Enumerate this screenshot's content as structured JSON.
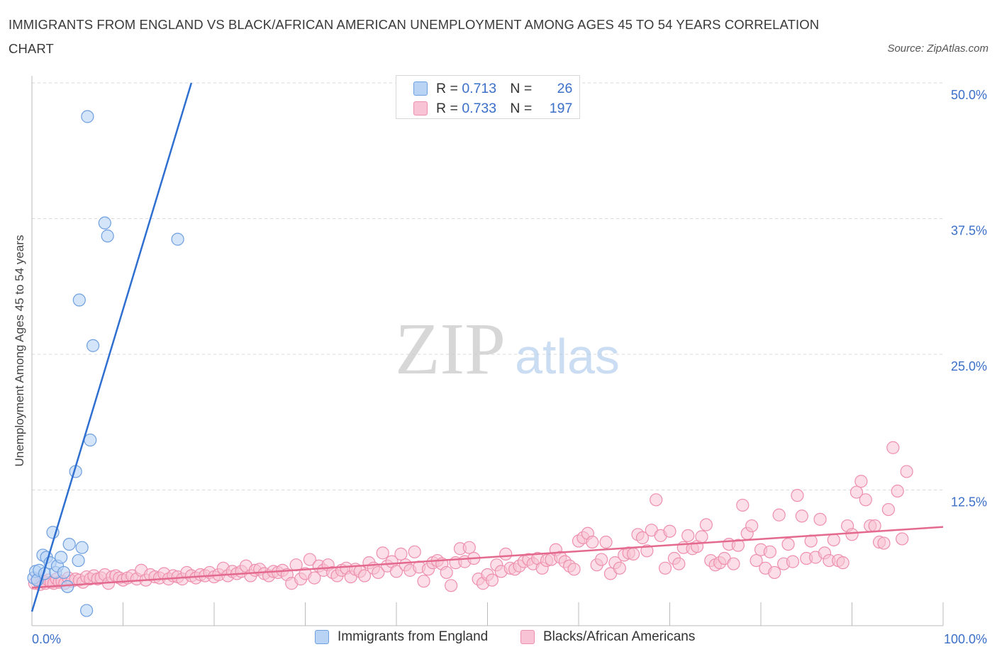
{
  "title": "IMMIGRANTS FROM ENGLAND VS BLACK/AFRICAN AMERICAN UNEMPLOYMENT AMONG AGES 45 TO 54 YEARS CORRELATION CHART",
  "source": "Source: ZipAtlas.com",
  "watermark": {
    "zip": "ZIP",
    "atlas": "atlas"
  },
  "colors": {
    "blue_fill": "#b9d3f5",
    "blue_stroke": "#6e9fe0",
    "blue_line": "#2e6fd0",
    "pink_fill": "#f8c3d4",
    "pink_stroke": "#ee8fae",
    "pink_line": "#e4698f",
    "grid": "#d9d9d9",
    "axis_label": "#3b6fc8"
  },
  "legend_top": [
    {
      "r_label": "R = ",
      "r_value": "0.713",
      "n_label": "N = ",
      "n_value": "26"
    },
    {
      "r_label": "R = ",
      "r_value": "0.733",
      "n_label": "N = ",
      "n_value": "197"
    }
  ],
  "legend_bottom": [
    "Immigrants from England",
    "Blacks/African Americans"
  ],
  "chart_data": {
    "type": "scatter",
    "title": "IMMIGRANTS FROM ENGLAND VS BLACK/AFRICAN AMERICAN UNEMPLOYMENT AMONG AGES 45 TO 54 YEARS CORRELATION CHART",
    "xlabel": "",
    "ylabel": "Unemployment Among Ages 45 to 54 years",
    "xlim": [
      0,
      100
    ],
    "ylim": [
      0,
      50
    ],
    "x_tick_labels": [
      "0.0%",
      "100.0%"
    ],
    "y_tick_labels": [
      "12.5%",
      "25.0%",
      "37.5%",
      "50.0%"
    ],
    "y_ticks": [
      12.5,
      25,
      37.5,
      50
    ],
    "grid": true,
    "legend_position": "top-center",
    "series": [
      {
        "name": "Immigrants from England",
        "color": "#6e9fe0",
        "points": [
          [
            0.2,
            4.4
          ],
          [
            0.4,
            5.0
          ],
          [
            0.6,
            4.2
          ],
          [
            0.8,
            5.1
          ],
          [
            1.2,
            6.5
          ],
          [
            1.4,
            4.8
          ],
          [
            1.6,
            6.3
          ],
          [
            2.0,
            5.8
          ],
          [
            2.3,
            8.6
          ],
          [
            2.6,
            4.9
          ],
          [
            2.8,
            5.5
          ],
          [
            3.2,
            6.3
          ],
          [
            3.5,
            4.9
          ],
          [
            3.9,
            3.6
          ],
          [
            4.1,
            7.5
          ],
          [
            4.8,
            14.2
          ],
          [
            5.1,
            6.0
          ],
          [
            5.2,
            30.0
          ],
          [
            5.5,
            7.2
          ],
          [
            6.0,
            1.4
          ],
          [
            6.1,
            46.9
          ],
          [
            6.4,
            17.1
          ],
          [
            6.7,
            25.8
          ],
          [
            8.0,
            37.1
          ],
          [
            8.3,
            35.9
          ],
          [
            16.0,
            35.6
          ]
        ]
      },
      {
        "name": "Blacks/African Americans",
        "color": "#ee8fae",
        "points": [
          [
            0.3,
            3.9
          ],
          [
            0.6,
            4.3
          ],
          [
            0.9,
            3.8
          ],
          [
            1.2,
            4.1
          ],
          [
            1.5,
            3.9
          ],
          [
            1.8,
            4.2
          ],
          [
            2.1,
            4.0
          ],
          [
            2.4,
            3.9
          ],
          [
            2.7,
            4.3
          ],
          [
            3.0,
            4.0
          ],
          [
            3.3,
            4.1
          ],
          [
            3.6,
            3.9
          ],
          [
            4.0,
            4.4
          ],
          [
            4.4,
            4.1
          ],
          [
            4.8,
            4.3
          ],
          [
            5.2,
            4.2
          ],
          [
            5.6,
            4.0
          ],
          [
            6.0,
            4.5
          ],
          [
            6.4,
            4.3
          ],
          [
            6.8,
            4.6
          ],
          [
            7.2,
            4.3
          ],
          [
            7.6,
            4.4
          ],
          [
            8.0,
            4.7
          ],
          [
            8.4,
            3.9
          ],
          [
            8.8,
            4.5
          ],
          [
            9.2,
            4.6
          ],
          [
            9.6,
            4.4
          ],
          [
            10.0,
            4.2
          ],
          [
            10.5,
            4.4
          ],
          [
            11.0,
            4.6
          ],
          [
            11.5,
            4.3
          ],
          [
            12.0,
            5.1
          ],
          [
            12.5,
            4.2
          ],
          [
            13.0,
            4.7
          ],
          [
            13.5,
            4.5
          ],
          [
            14.0,
            4.4
          ],
          [
            14.5,
            4.8
          ],
          [
            15.0,
            4.3
          ],
          [
            15.5,
            4.6
          ],
          [
            16.0,
            4.5
          ],
          [
            16.5,
            4.3
          ],
          [
            17.0,
            4.9
          ],
          [
            17.5,
            4.6
          ],
          [
            18.0,
            4.4
          ],
          [
            18.5,
            4.7
          ],
          [
            19.0,
            4.6
          ],
          [
            19.5,
            4.9
          ],
          [
            20.0,
            4.5
          ],
          [
            20.5,
            4.7
          ],
          [
            21.0,
            5.3
          ],
          [
            21.5,
            4.6
          ],
          [
            22.0,
            5.0
          ],
          [
            22.5,
            4.8
          ],
          [
            23.0,
            5.0
          ],
          [
            23.5,
            5.5
          ],
          [
            24.0,
            4.6
          ],
          [
            24.5,
            5.1
          ],
          [
            25.0,
            5.2
          ],
          [
            25.5,
            4.8
          ],
          [
            26.0,
            4.6
          ],
          [
            26.5,
            5.0
          ],
          [
            27.0,
            4.9
          ],
          [
            27.5,
            5.1
          ],
          [
            28.0,
            4.7
          ],
          [
            28.5,
            3.9
          ],
          [
            29.0,
            5.6
          ],
          [
            29.5,
            4.3
          ],
          [
            30.0,
            4.8
          ],
          [
            30.5,
            6.1
          ],
          [
            31.0,
            4.4
          ],
          [
            31.5,
            5.5
          ],
          [
            32.0,
            5.1
          ],
          [
            32.5,
            5.6
          ],
          [
            33.0,
            4.9
          ],
          [
            33.5,
            4.6
          ],
          [
            34.0,
            5.1
          ],
          [
            34.5,
            5.3
          ],
          [
            35.0,
            4.5
          ],
          [
            35.5,
            5.2
          ],
          [
            36.0,
            5.0
          ],
          [
            36.5,
            4.6
          ],
          [
            37.0,
            5.8
          ],
          [
            37.5,
            5.3
          ],
          [
            38.0,
            4.9
          ],
          [
            38.5,
            6.7
          ],
          [
            39.0,
            5.5
          ],
          [
            39.5,
            5.9
          ],
          [
            40.0,
            5.0
          ],
          [
            40.5,
            6.6
          ],
          [
            41.0,
            5.6
          ],
          [
            41.5,
            5.1
          ],
          [
            42.0,
            6.8
          ],
          [
            42.5,
            5.4
          ],
          [
            43.0,
            4.1
          ],
          [
            43.5,
            5.2
          ],
          [
            44.0,
            5.8
          ],
          [
            44.5,
            6.0
          ],
          [
            45.0,
            5.7
          ],
          [
            45.5,
            4.9
          ],
          [
            46.0,
            3.7
          ],
          [
            46.5,
            5.8
          ],
          [
            47.0,
            7.1
          ],
          [
            47.5,
            5.9
          ],
          [
            48.0,
            7.2
          ],
          [
            48.5,
            6.2
          ],
          [
            49.0,
            4.3
          ],
          [
            49.5,
            3.9
          ],
          [
            50.0,
            4.7
          ],
          [
            50.5,
            4.2
          ],
          [
            51.0,
            5.6
          ],
          [
            51.5,
            5.0
          ],
          [
            52.0,
            6.6
          ],
          [
            52.5,
            5.3
          ],
          [
            53.0,
            5.2
          ],
          [
            53.5,
            5.5
          ],
          [
            54.0,
            5.9
          ],
          [
            54.5,
            6.1
          ],
          [
            55.0,
            5.7
          ],
          [
            55.5,
            6.2
          ],
          [
            56.0,
            5.3
          ],
          [
            56.5,
            6.0
          ],
          [
            57.0,
            6.1
          ],
          [
            57.5,
            7.0
          ],
          [
            58.0,
            6.3
          ],
          [
            58.5,
            5.9
          ],
          [
            59.0,
            5.5
          ],
          [
            59.5,
            5.2
          ],
          [
            60.0,
            7.8
          ],
          [
            60.5,
            8.1
          ],
          [
            61.0,
            8.5
          ],
          [
            61.5,
            7.7
          ],
          [
            62.0,
            5.6
          ],
          [
            62.5,
            6.1
          ],
          [
            63.0,
            7.7
          ],
          [
            63.5,
            4.8
          ],
          [
            64.0,
            5.8
          ],
          [
            64.5,
            5.3
          ],
          [
            65.0,
            6.5
          ],
          [
            65.5,
            6.7
          ],
          [
            66.0,
            6.6
          ],
          [
            66.5,
            8.4
          ],
          [
            67.0,
            8.1
          ],
          [
            67.5,
            6.9
          ],
          [
            68.0,
            8.8
          ],
          [
            68.5,
            11.6
          ],
          [
            69.0,
            8.3
          ],
          [
            69.5,
            5.3
          ],
          [
            70.0,
            8.7
          ],
          [
            70.5,
            6.2
          ],
          [
            71.0,
            5.7
          ],
          [
            71.5,
            7.2
          ],
          [
            72.0,
            8.3
          ],
          [
            72.5,
            7.1
          ],
          [
            73.0,
            7.3
          ],
          [
            73.5,
            8.2
          ],
          [
            74.0,
            9.3
          ],
          [
            74.5,
            6.0
          ],
          [
            75.0,
            5.6
          ],
          [
            75.5,
            5.8
          ],
          [
            76.0,
            6.2
          ],
          [
            76.5,
            7.5
          ],
          [
            77.0,
            5.7
          ],
          [
            77.5,
            7.4
          ],
          [
            78.0,
            11.1
          ],
          [
            78.5,
            8.5
          ],
          [
            79.0,
            9.2
          ],
          [
            79.5,
            6.0
          ],
          [
            80.0,
            7.0
          ],
          [
            80.5,
            5.3
          ],
          [
            81.0,
            6.8
          ],
          [
            81.5,
            4.9
          ],
          [
            82.0,
            10.2
          ],
          [
            82.5,
            5.7
          ],
          [
            83.0,
            7.5
          ],
          [
            83.5,
            5.9
          ],
          [
            84.0,
            12.0
          ],
          [
            84.5,
            10.1
          ],
          [
            85.0,
            6.2
          ],
          [
            85.5,
            7.8
          ],
          [
            86.0,
            6.3
          ],
          [
            86.5,
            9.8
          ],
          [
            87.0,
            6.7
          ],
          [
            87.5,
            6.0
          ],
          [
            88.0,
            7.9
          ],
          [
            88.5,
            6.0
          ],
          [
            89.0,
            5.8
          ],
          [
            89.5,
            9.2
          ],
          [
            90.0,
            8.4
          ],
          [
            90.5,
            12.3
          ],
          [
            91.0,
            13.3
          ],
          [
            91.5,
            11.6
          ],
          [
            92.0,
            9.2
          ],
          [
            92.5,
            9.2
          ],
          [
            93.0,
            7.7
          ],
          [
            93.5,
            7.6
          ],
          [
            94.0,
            10.7
          ],
          [
            94.5,
            16.4
          ],
          [
            95.0,
            12.4
          ],
          [
            95.5,
            8.0
          ],
          [
            96.0,
            14.2
          ]
        ]
      }
    ],
    "trendlines": [
      {
        "series": "Immigrants from England",
        "x": [
          0.0,
          17.5
        ],
        "y": [
          1.3,
          50.0
        ]
      },
      {
        "series": "Blacks/African Americans",
        "x": [
          0.0,
          100.0
        ],
        "y": [
          3.5,
          9.1
        ]
      }
    ]
  }
}
